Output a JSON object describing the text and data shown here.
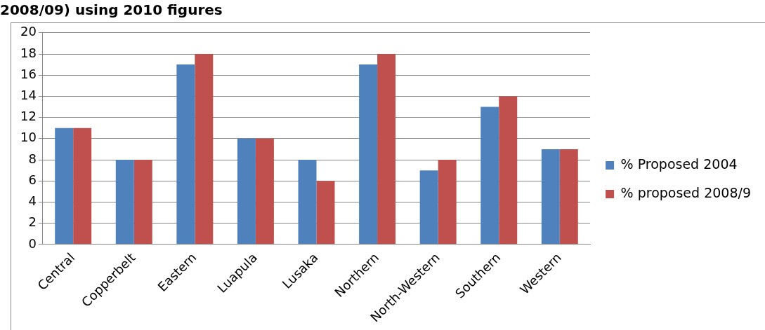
{
  "chart_data": {
    "type": "bar",
    "title": "2008/09) using 2010 figures",
    "categories": [
      "Central",
      "Copperbelt",
      "Eastern",
      "Luapula",
      "Lusaka",
      "Northern",
      "North-Western",
      "Southern",
      "Western"
    ],
    "series": [
      {
        "name": "% Proposed 2004",
        "color": "#4f81bd",
        "values": [
          11,
          8,
          17,
          10,
          8,
          17,
          7,
          13,
          9
        ]
      },
      {
        "name": "% proposed 2008/9",
        "color": "#c0504d",
        "values": [
          11,
          8,
          18,
          10,
          6,
          18,
          8,
          14,
          9
        ]
      }
    ],
    "ylim": [
      0,
      20
    ],
    "yticks": [
      0,
      2,
      4,
      6,
      8,
      10,
      12,
      14,
      16,
      18,
      20
    ],
    "grid": "y",
    "legend": "right"
  }
}
